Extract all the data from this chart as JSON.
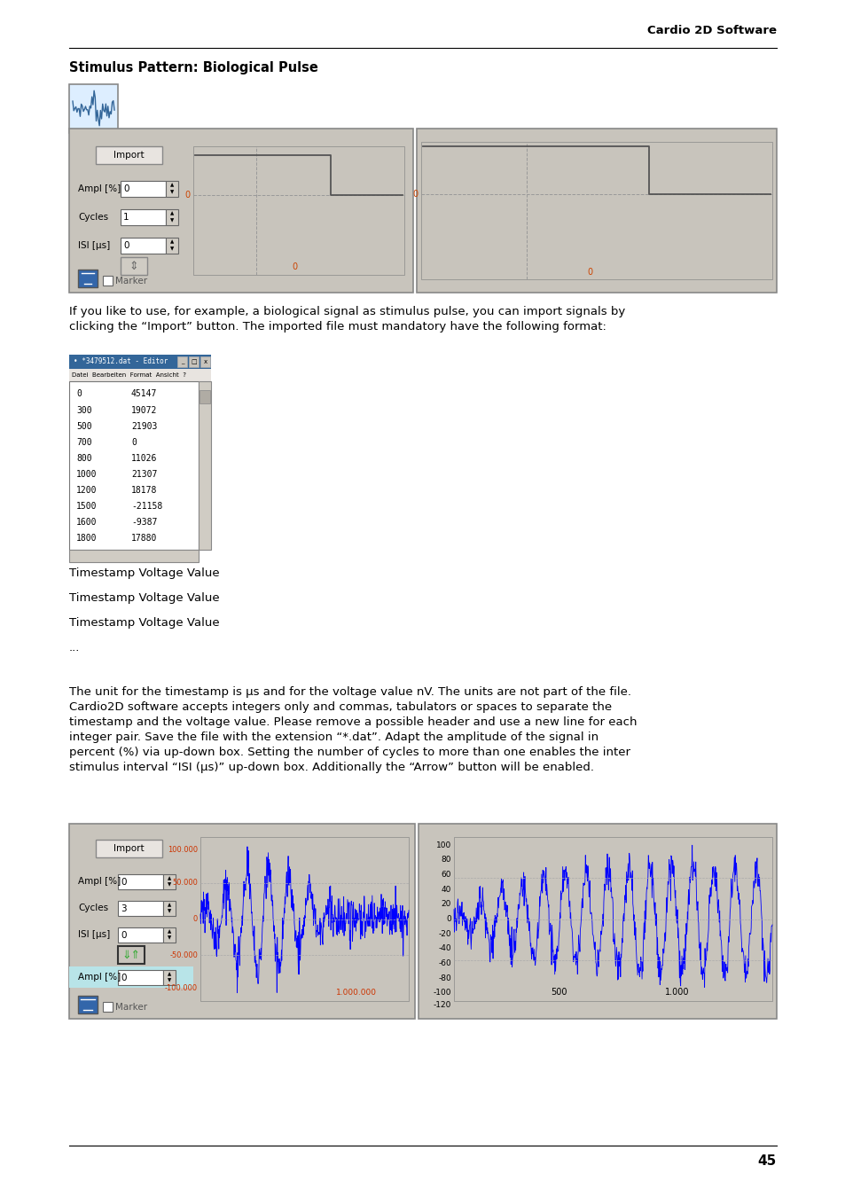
{
  "page_title_right": "Cardio 2D Software",
  "section_title": "Stimulus Pattern: Biological Pulse",
  "body_text_1": "If you like to use, for example, a biological signal as stimulus pulse, you can import signals by\nclicking the “Import” button. The imported file must mandatory have the following format:",
  "timestamp_lines": [
    "Timestamp Voltage Value",
    "Timestamp Voltage Value",
    "Timestamp Voltage Value",
    "..."
  ],
  "body_text_2": "The unit for the timestamp is µs and for the voltage value nV. The units are not part of the file.\nCardio2D software accepts integers only and commas, tabulators or spaces to separate the\ntimestamp and the voltage value. Please remove a possible header and use a new line for each\ninteger pair. Save the file with the extension “*.dat”. Adapt the amplitude of the signal in\npercent (%) via up-down box. Setting the number of cycles to more than one enables the inter\nstimulus interval “ISI (µs)” up-down box. Additionally the “Arrow” button will be enabled.",
  "page_number": "45",
  "background_color": "#ffffff",
  "panel_bg": "#c8c4bc",
  "plot_bg": "#c8c4bc",
  "editor_data": [
    [
      "0",
      "45147"
    ],
    [
      "300",
      "19072"
    ],
    [
      "500",
      "21903"
    ],
    [
      "700",
      "0"
    ],
    [
      "800",
      "11026"
    ],
    [
      "1000",
      "21307"
    ],
    [
      "1200",
      "18178"
    ],
    [
      "1500",
      "-21158"
    ],
    [
      "1600",
      "-9387"
    ],
    [
      "1800",
      "17880"
    ]
  ]
}
